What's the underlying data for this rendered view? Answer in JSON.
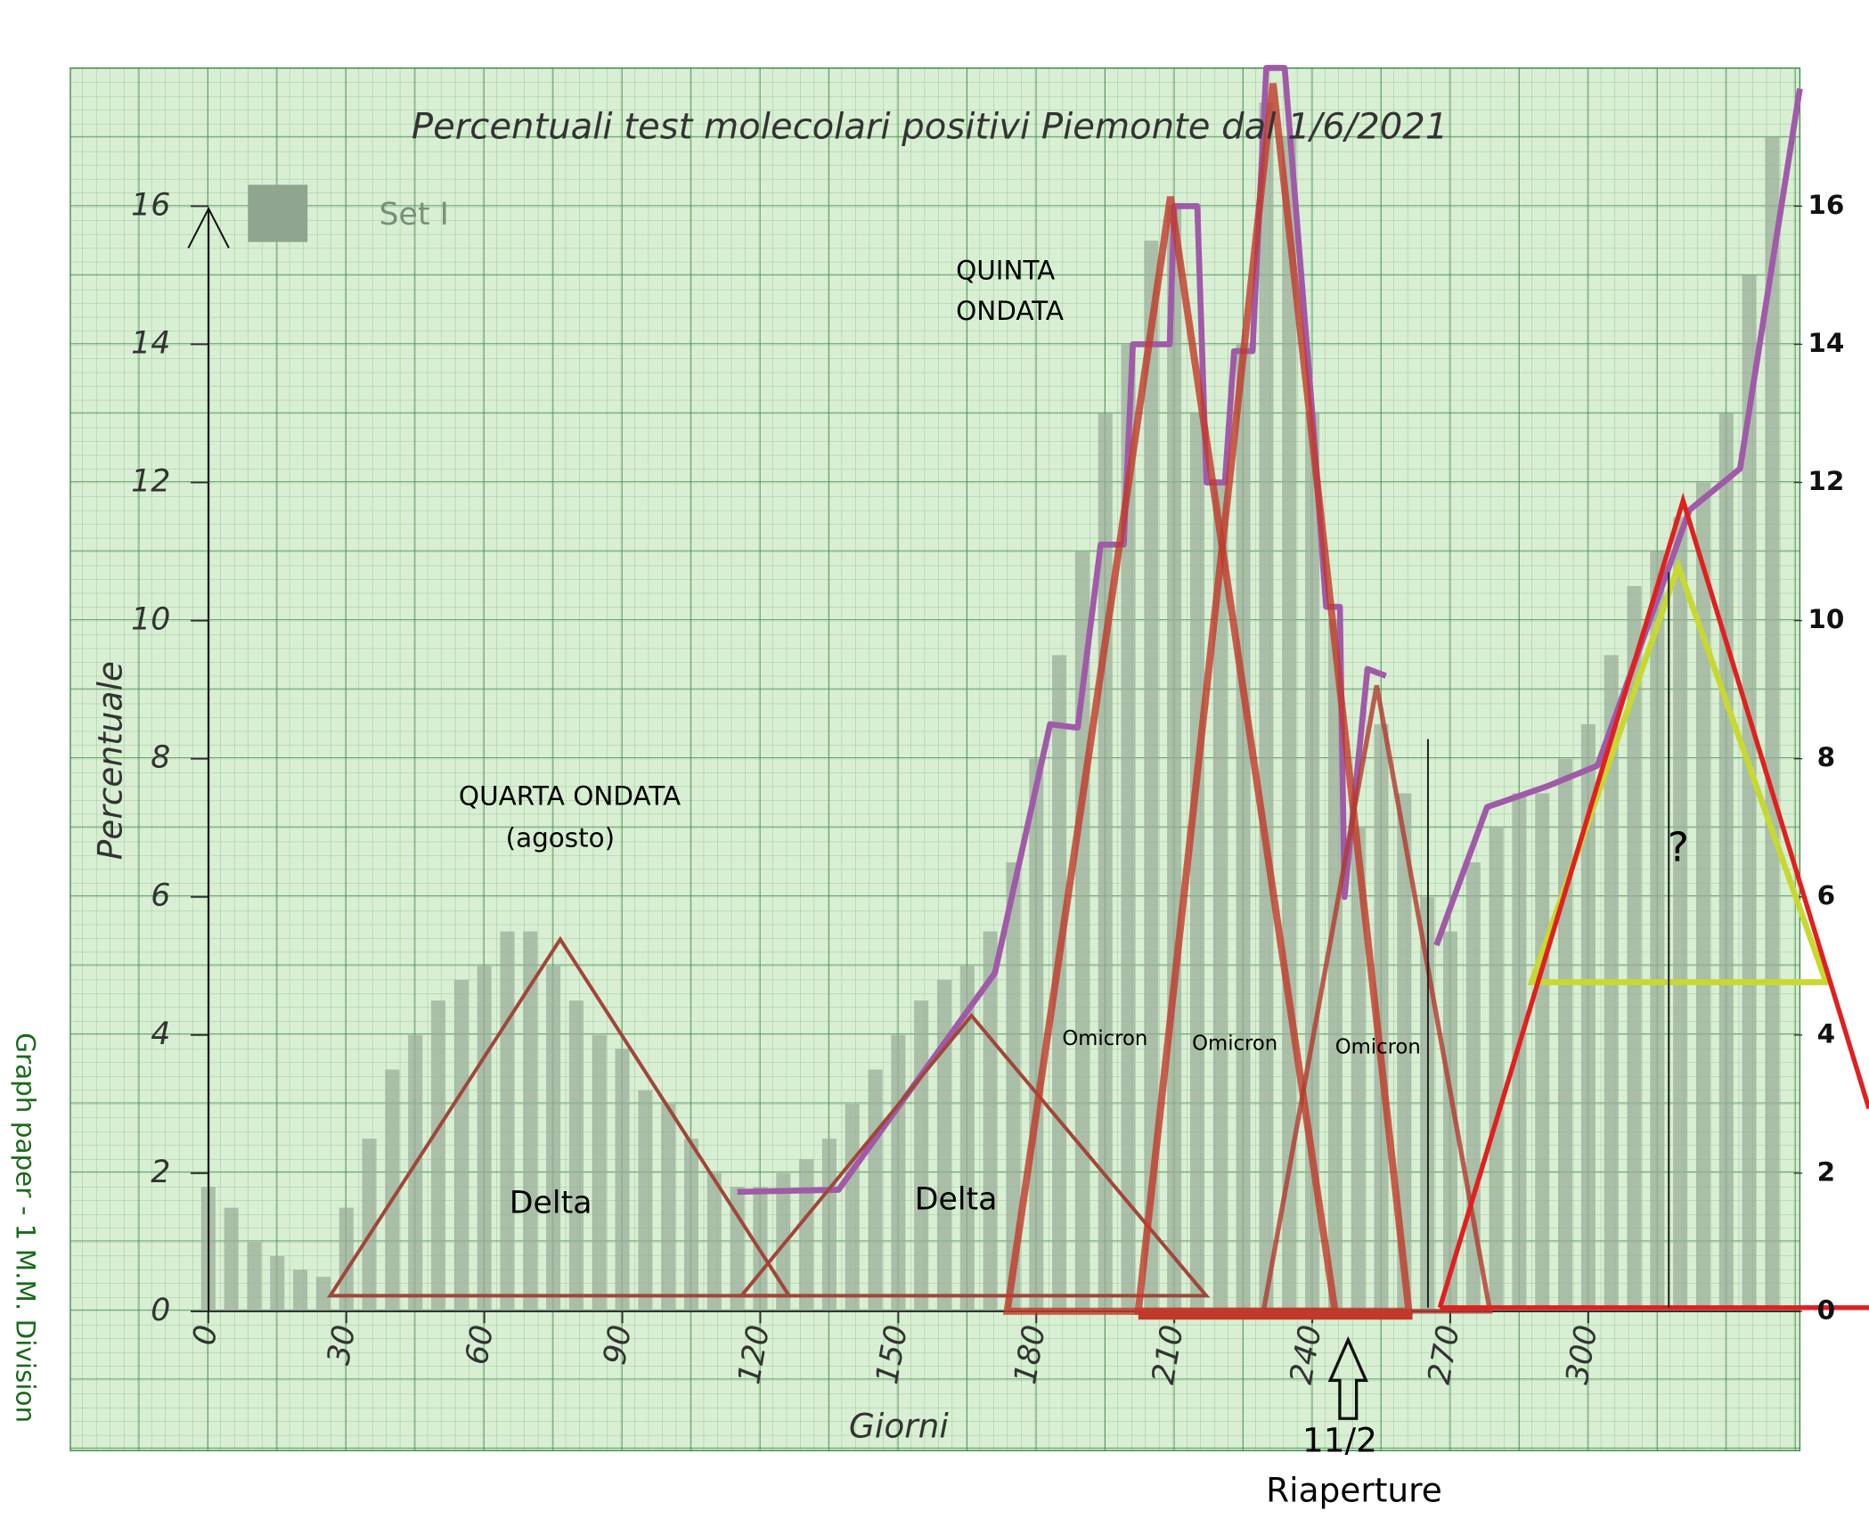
{
  "chart_data": {
    "type": "bar",
    "title": "Percentuali test molecolari positivi Piemonte dal 1/6/2021",
    "x_label": "Giorni",
    "y_label": "Percentuale",
    "xlim": [
      -30,
      346
    ],
    "ylim": [
      -2,
      18
    ],
    "y2lim": [
      -2,
      18
    ],
    "xticks": [
      0,
      30,
      60,
      90,
      120,
      150,
      180,
      210,
      240,
      270,
      300
    ],
    "yticks": [
      0,
      2,
      4,
      6,
      8,
      10,
      12,
      14,
      16
    ],
    "y2ticks": [
      0,
      2,
      4,
      6,
      8,
      10,
      12,
      14,
      16
    ],
    "grid": true,
    "legend": "upper left",
    "series": [
      {
        "name": "Set I",
        "color": "#9aae9a",
        "x": [
          0,
          5,
          10,
          15,
          20,
          25,
          30,
          35,
          40,
          45,
          50,
          55,
          60,
          65,
          70,
          75,
          80,
          85,
          90,
          95,
          100,
          105,
          110,
          115,
          120,
          125,
          130,
          135,
          140,
          145,
          150,
          155,
          160,
          165,
          170,
          175,
          180,
          185,
          190,
          195,
          200,
          205,
          210,
          215,
          220,
          225,
          230,
          235,
          240,
          245,
          250,
          255,
          260,
          265,
          270,
          275,
          280,
          285,
          290,
          295,
          300,
          305,
          310,
          315,
          320,
          325,
          330,
          335,
          340
        ],
        "values": [
          1.8,
          1.5,
          1.0,
          0.8,
          0.6,
          0.5,
          1.5,
          2.5,
          3.5,
          4.0,
          4.5,
          4.8,
          5.0,
          5.5,
          5.5,
          5.0,
          4.5,
          4.0,
          3.8,
          3.2,
          3.0,
          2.5,
          2.0,
          1.8,
          1.8,
          2.0,
          2.2,
          2.5,
          3.0,
          3.5,
          4.0,
          4.5,
          4.8,
          5.0,
          5.5,
          6.5,
          8.0,
          9.5,
          11.0,
          13.0,
          14.0,
          15.5,
          16.0,
          13.0,
          12.0,
          14.0,
          17.5,
          17.0,
          13.0,
          10.0,
          7.0,
          8.5,
          7.5,
          6.0,
          5.5,
          6.5,
          7.0,
          7.5,
          7.5,
          8.0,
          8.5,
          9.5,
          10.5,
          11.0,
          11.5,
          12.0,
          13.0,
          15.0,
          17.0
        ]
      },
      {
        "type": "line",
        "color": "#a05aa8",
        "x": [
          115,
          137,
          171,
          183,
          189,
          194,
          199,
          201,
          209,
          210,
          215,
          217,
          221,
          223,
          227,
          230,
          234,
          240,
          243,
          246,
          247,
          252,
          256,
          null,
          267,
          278,
          291,
          302,
          322,
          333,
          346
        ],
        "values": [
          1.73,
          1.76,
          4.9,
          8.5,
          8.45,
          11.1,
          11.1,
          14.0,
          14.0,
          16.0,
          16.0,
          12.0,
          12.0,
          13.9,
          13.9,
          18.0,
          18.0,
          13.0,
          10.2,
          10.2,
          6.0,
          9.3,
          9.2,
          null,
          5.3,
          7.3,
          7.6,
          7.9,
          11.6,
          12.2,
          17.7
        ]
      }
    ],
    "annotations": {
      "quarta": "QUARTA ONDATA",
      "agosto": "(agosto)",
      "quinta": "QUINTA",
      "ondata": "ONDATA",
      "delta1": "Delta",
      "delta2": "Delta",
      "omicron1": "Omicron",
      "omicron2": "Omicron",
      "omicron3": "Omicron",
      "question": "?",
      "date": "11/2",
      "riaperture": "Riaperture",
      "paper": "Graph paper - 1 M.M. Division"
    }
  }
}
